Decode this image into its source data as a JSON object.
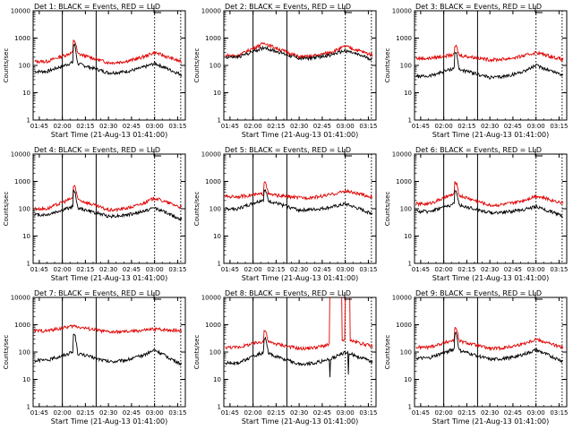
{
  "figure": {
    "layout": "3x3",
    "ylabel": "Counts/sec",
    "xlabel": "Start Time (21-Aug-13 01:41:00)",
    "x_ticks": [
      "01:45",
      "02:00",
      "02:15",
      "02:30",
      "02:45",
      "03:00",
      "03:15"
    ],
    "y_ticks": [
      "1",
      "10",
      "100",
      "1000",
      "10000"
    ],
    "colors": {
      "events": "#000000",
      "lld": "#e00000",
      "axes": "#000000",
      "background": "#ffffff"
    },
    "legend_icon": "bracket-icon"
  },
  "chart_data": [
    {
      "type": "line",
      "title": "Det 1: BLACK = Events, RED = LLD",
      "xlabel": "Start Time (21-Aug-13 01:41:00)",
      "ylabel": "Counts/sec",
      "y_scale": "log",
      "ylim": [
        1,
        10000
      ],
      "xlim": [
        "01:41",
        "03:20"
      ],
      "vlines_solid": [
        "02:00",
        "02:22"
      ],
      "vlines_dotted": [
        "03:00",
        "03:17"
      ],
      "series": [
        {
          "name": "Events",
          "color": "#000000",
          "baseline": 60,
          "flare_peak": 130,
          "spike_time": "02:07",
          "spike": 550,
          "hump_time": "03:00",
          "hump": 120,
          "end": 40
        },
        {
          "name": "LLD",
          "color": "#e00000",
          "baseline": 140,
          "flare_peak": 300,
          "spike_time": "02:07",
          "spike": 800,
          "hump_time": "03:00",
          "hump": 300,
          "end": 120
        }
      ]
    },
    {
      "type": "line",
      "title": "Det 2: BLACK = Events, RED = LLD",
      "xlabel": "Start Time (21-Aug-13 01:41:00)",
      "ylabel": "Counts/sec",
      "y_scale": "log",
      "ylim": [
        1,
        10000
      ],
      "xlim": [
        "01:41",
        "03:20"
      ],
      "vlines_solid": [
        "02:00",
        "02:22"
      ],
      "vlines_dotted": [
        "03:00",
        "03:17"
      ],
      "series": [
        {
          "name": "Events",
          "color": "#000000",
          "baseline": 200,
          "flare_peak": 450,
          "spike_time": "02:07",
          "spike": 450,
          "hump_time": "03:00",
          "hump": 350,
          "end": 150
        },
        {
          "name": "LLD",
          "color": "#e00000",
          "baseline": 230,
          "flare_peak": 650,
          "spike_time": "02:07",
          "spike": 650,
          "hump_time": "03:00",
          "hump": 500,
          "end": 220
        }
      ]
    },
    {
      "type": "line",
      "title": "Det 3: BLACK = Events, RED = LLD",
      "xlabel": "Start Time (21-Aug-13 01:41:00)",
      "ylabel": "Counts/sec",
      "y_scale": "log",
      "ylim": [
        1,
        10000
      ],
      "xlim": [
        "01:41",
        "03:20"
      ],
      "vlines_solid": [
        "02:00",
        "02:22"
      ],
      "vlines_dotted": [
        "03:00",
        "03:17"
      ],
      "series": [
        {
          "name": "Events",
          "color": "#000000",
          "baseline": 40,
          "flare_peak": 80,
          "spike_time": "02:07",
          "spike": 300,
          "hump_time": "03:00",
          "hump": 100,
          "end": 40
        },
        {
          "name": "LLD",
          "color": "#e00000",
          "baseline": 180,
          "flare_peak": 250,
          "spike_time": "02:07",
          "spike": 500,
          "hump_time": "03:00",
          "hump": 300,
          "end": 150
        }
      ]
    },
    {
      "type": "line",
      "title": "Det 4: BLACK = Events, RED = LLD",
      "xlabel": "Start Time (21-Aug-13 01:41:00)",
      "ylabel": "Counts/sec",
      "y_scale": "log",
      "ylim": [
        1,
        10000
      ],
      "xlim": [
        "01:41",
        "03:20"
      ],
      "vlines_solid": [
        "02:00",
        "02:22"
      ],
      "vlines_dotted": [
        "03:00",
        "03:17"
      ],
      "series": [
        {
          "name": "Events",
          "color": "#000000",
          "baseline": 60,
          "flare_peak": 120,
          "spike_time": "02:07",
          "spike": 450,
          "hump_time": "03:00",
          "hump": 110,
          "end": 35
        },
        {
          "name": "LLD",
          "color": "#e00000",
          "baseline": 100,
          "flare_peak": 250,
          "spike_time": "02:07",
          "spike": 700,
          "hump_time": "03:00",
          "hump": 250,
          "end": 100
        }
      ]
    },
    {
      "type": "line",
      "title": "Det 5: BLACK = Events, RED = LLD",
      "xlabel": "Start Time (21-Aug-13 01:41:00)",
      "ylabel": "Counts/sec",
      "y_scale": "log",
      "ylim": [
        1,
        10000
      ],
      "xlim": [
        "01:41",
        "03:20"
      ],
      "vlines_solid": [
        "02:00",
        "02:22"
      ],
      "vlines_dotted": [
        "03:00",
        "03:17"
      ],
      "series": [
        {
          "name": "Events",
          "color": "#000000",
          "baseline": 100,
          "flare_peak": 220,
          "spike_time": "02:07",
          "spike": 450,
          "hump_time": "03:00",
          "hump": 150,
          "end": 60
        },
        {
          "name": "LLD",
          "color": "#e00000",
          "baseline": 280,
          "flare_peak": 350,
          "spike_time": "02:07",
          "spike": 1000,
          "hump_time": "03:00",
          "hump": 450,
          "end": 250
        }
      ]
    },
    {
      "type": "line",
      "title": "Det 6: BLACK = Events, RED = LLD",
      "xlabel": "Start Time (21-Aug-13 01:41:00)",
      "ylabel": "Counts/sec",
      "y_scale": "log",
      "ylim": [
        1,
        10000
      ],
      "xlim": [
        "01:41",
        "03:20"
      ],
      "vlines_solid": [
        "02:00",
        "02:22"
      ],
      "vlines_dotted": [
        "03:00",
        "03:17"
      ],
      "series": [
        {
          "name": "Events",
          "color": "#000000",
          "baseline": 80,
          "flare_peak": 150,
          "spike_time": "02:07",
          "spike": 450,
          "hump_time": "03:00",
          "hump": 120,
          "end": 50
        },
        {
          "name": "LLD",
          "color": "#e00000",
          "baseline": 150,
          "flare_peak": 350,
          "spike_time": "02:07",
          "spike": 900,
          "hump_time": "03:00",
          "hump": 300,
          "end": 150
        }
      ]
    },
    {
      "type": "line",
      "title": "Det 7: BLACK = Events, RED = LLD",
      "xlabel": "Start Time (21-Aug-13 01:41:00)",
      "ylabel": "Counts/sec",
      "y_scale": "log",
      "ylim": [
        1,
        10000
      ],
      "xlim": [
        "01:41",
        "03:20"
      ],
      "vlines_solid": [
        "02:00",
        "02:22"
      ],
      "vlines_dotted": [
        "03:00",
        "03:17"
      ],
      "series": [
        {
          "name": "Events",
          "color": "#000000",
          "baseline": 50,
          "flare_peak": 100,
          "spike_time": "02:07",
          "spike": 450,
          "hump_time": "03:00",
          "hump": 120,
          "end": 30
        },
        {
          "name": "LLD",
          "color": "#e00000",
          "baseline": 600,
          "flare_peak": 900,
          "spike_time": "02:07",
          "spike": 900,
          "hump_time": "03:00",
          "hump": 700,
          "end": 600
        }
      ]
    },
    {
      "type": "line",
      "title": "Det 8: BLACK = Events, RED = LLD",
      "xlabel": "Start Time (21-Aug-13 01:41:00)",
      "ylabel": "Counts/sec",
      "y_scale": "log",
      "ylim": [
        1,
        10000
      ],
      "xlim": [
        "01:41",
        "03:20"
      ],
      "vlines_solid": [
        "02:00",
        "02:22"
      ],
      "vlines_dotted": [
        "03:00",
        "03:17"
      ],
      "saturated_intervals": [
        [
          "02:50",
          "02:58"
        ],
        [
          "03:00",
          "03:03"
        ]
      ],
      "series": [
        {
          "name": "Events",
          "color": "#000000",
          "baseline": 40,
          "flare_peak": 100,
          "spike_time": "02:07",
          "spike": 300,
          "hump_time": "03:00",
          "hump": 100,
          "end": 40
        },
        {
          "name": "LLD",
          "color": "#e00000",
          "baseline": 150,
          "flare_peak": 250,
          "spike_time": "02:07",
          "spike": 600,
          "hump_time": "03:00",
          "hump": 300,
          "end": 150
        }
      ]
    },
    {
      "type": "line",
      "title": "Det 9: BLACK = Events, RED = LLD",
      "xlabel": "Start Time (21-Aug-13 01:41:00)",
      "ylabel": "Counts/sec",
      "y_scale": "log",
      "ylim": [
        1,
        10000
      ],
      "xlim": [
        "01:41",
        "03:20"
      ],
      "vlines_solid": [
        "02:00",
        "02:22"
      ],
      "vlines_dotted": [
        "03:00",
        "03:17"
      ],
      "series": [
        {
          "name": "Events",
          "color": "#000000",
          "baseline": 60,
          "flare_peak": 130,
          "spike_time": "02:07",
          "spike": 500,
          "hump_time": "03:00",
          "hump": 120,
          "end": 40
        },
        {
          "name": "LLD",
          "color": "#e00000",
          "baseline": 150,
          "flare_peak": 280,
          "spike_time": "02:07",
          "spike": 800,
          "hump_time": "03:00",
          "hump": 300,
          "end": 130
        }
      ]
    }
  ]
}
